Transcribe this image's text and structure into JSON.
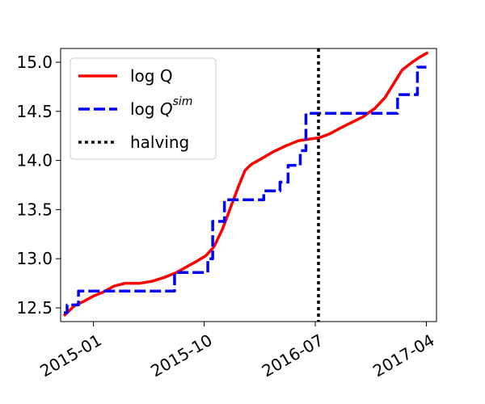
{
  "chart_data": {
    "type": "line",
    "title": "",
    "xlabel": "",
    "ylabel": "",
    "x_axis": {
      "type": "date",
      "range": [
        "2014-10-12",
        "2017-04-26"
      ],
      "ticks": [
        "2015-01-01",
        "2015-10-01",
        "2016-07-01",
        "2017-04-01"
      ],
      "tick_labels": [
        "2015-01",
        "2015-10",
        "2016-07",
        "2017-04"
      ],
      "tick_label_rotation": -30
    },
    "y_axis": {
      "range": [
        12.36,
        15.14
      ],
      "ticks": [
        12.5,
        13.0,
        13.5,
        14.0,
        14.5,
        15.0
      ],
      "tick_labels": [
        "12.5",
        "13.0",
        "13.5",
        "14.0",
        "14.5",
        "15.0"
      ]
    },
    "grid": false,
    "legend": {
      "placement": "top-left"
    },
    "series": [
      {
        "key": "logq",
        "legend_label": "log Q",
        "color": "#ff0000",
        "style": "solid",
        "points": [
          [
            "2014-10-20",
            12.42
          ],
          [
            "2014-11-15",
            12.52
          ],
          [
            "2014-12-10",
            12.57
          ],
          [
            "2015-01-01",
            12.62
          ],
          [
            "2015-01-25",
            12.66
          ],
          [
            "2015-02-20",
            12.72
          ],
          [
            "2015-03-20",
            12.75
          ],
          [
            "2015-04-25",
            12.75
          ],
          [
            "2015-05-25",
            12.77
          ],
          [
            "2015-06-25",
            12.81
          ],
          [
            "2015-07-25",
            12.86
          ],
          [
            "2015-08-20",
            12.92
          ],
          [
            "2015-09-15",
            12.98
          ],
          [
            "2015-10-05",
            13.03
          ],
          [
            "2015-10-25",
            13.12
          ],
          [
            "2015-11-15",
            13.3
          ],
          [
            "2015-12-05",
            13.52
          ],
          [
            "2015-12-25",
            13.74
          ],
          [
            "2016-01-10",
            13.9
          ],
          [
            "2016-01-25",
            13.96
          ],
          [
            "2016-02-20",
            14.02
          ],
          [
            "2016-03-20",
            14.09
          ],
          [
            "2016-04-20",
            14.15
          ],
          [
            "2016-05-20",
            14.2
          ],
          [
            "2016-06-20",
            14.22
          ],
          [
            "2016-07-10",
            14.23
          ],
          [
            "2016-08-05",
            14.27
          ],
          [
            "2016-09-01",
            14.33
          ],
          [
            "2016-09-25",
            14.38
          ],
          [
            "2016-10-25",
            14.44
          ],
          [
            "2016-11-25",
            14.53
          ],
          [
            "2016-12-20",
            14.64
          ],
          [
            "2017-01-10",
            14.78
          ],
          [
            "2017-01-31",
            14.92
          ],
          [
            "2017-02-25",
            15.0
          ],
          [
            "2017-03-15",
            15.05
          ],
          [
            "2017-04-05",
            15.1
          ]
        ]
      },
      {
        "key": "logqsim",
        "legend_label": "log Q",
        "legend_superscript": "sim",
        "color": "#0000ff",
        "style": "dashed",
        "points": [
          [
            "2014-10-20",
            12.45
          ],
          [
            "2014-10-28",
            12.45
          ],
          [
            "2014-10-28",
            12.53
          ],
          [
            "2014-11-25",
            12.53
          ],
          [
            "2014-11-25",
            12.67
          ],
          [
            "2015-07-20",
            12.67
          ],
          [
            "2015-07-20",
            12.86
          ],
          [
            "2015-10-10",
            12.86
          ],
          [
            "2015-10-10",
            13.0
          ],
          [
            "2015-10-22",
            13.0
          ],
          [
            "2015-10-22",
            13.38
          ],
          [
            "2015-11-20",
            13.38
          ],
          [
            "2015-11-20",
            13.6
          ],
          [
            "2016-02-25",
            13.6
          ],
          [
            "2016-02-25",
            13.69
          ],
          [
            "2016-04-05",
            13.69
          ],
          [
            "2016-04-05",
            13.78
          ],
          [
            "2016-04-25",
            13.78
          ],
          [
            "2016-04-25",
            13.95
          ],
          [
            "2016-05-25",
            13.95
          ],
          [
            "2016-05-25",
            14.1
          ],
          [
            "2016-06-08",
            14.1
          ],
          [
            "2016-06-08",
            14.48
          ],
          [
            "2017-01-20",
            14.48
          ],
          [
            "2017-01-20",
            14.67
          ],
          [
            "2017-03-10",
            14.67
          ],
          [
            "2017-03-10",
            14.95
          ],
          [
            "2017-04-01",
            14.95
          ]
        ]
      }
    ],
    "markers": [
      {
        "key": "halving",
        "legend_label": "halving",
        "date": "2016-07-09",
        "color": "#000000",
        "style": "dotted"
      }
    ]
  }
}
